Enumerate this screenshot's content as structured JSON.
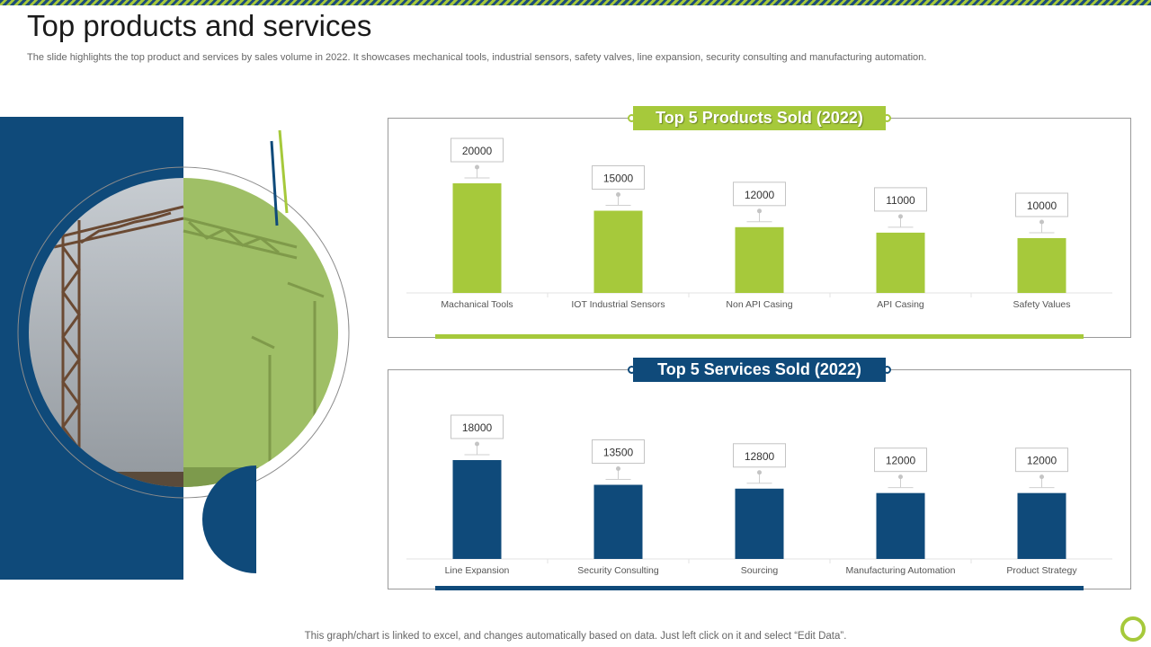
{
  "page": {
    "title": "Top products and services",
    "subtitle": "The slide highlights the top product and services by sales volume in 2022. It showcases mechanical tools, industrial sensors, safety valves, line expansion, security consulting and manufacturing automation.",
    "footer": "This graph/chart is linked to excel, and changes automatically based on data. Just left click on it and select “Edit Data”."
  },
  "colors": {
    "green": "#a6c93b",
    "blue": "#0f4a7a"
  },
  "chart_data": [
    {
      "type": "bar",
      "title": "Top 5 Products Sold (2022)",
      "categories": [
        "Machanical Tools",
        "IOT Industrial Sensors",
        "Non API Casing",
        "API Casing",
        "Safety Values"
      ],
      "values": [
        20000,
        15000,
        12000,
        11000,
        10000
      ],
      "ylim": [
        0,
        20000
      ],
      "color": "#a6c93b",
      "xlabel": "",
      "ylabel": ""
    },
    {
      "type": "bar",
      "title": "Top 5 Services Sold (2022)",
      "categories": [
        "Line Expansion",
        "Security Consulting",
        "Sourcing",
        "Manufacturing Automation",
        "Product Strategy"
      ],
      "values": [
        18000,
        13500,
        12800,
        12000,
        12000
      ],
      "ylim": [
        0,
        18000
      ],
      "color": "#0f4a7a",
      "xlabel": "",
      "ylabel": ""
    }
  ]
}
